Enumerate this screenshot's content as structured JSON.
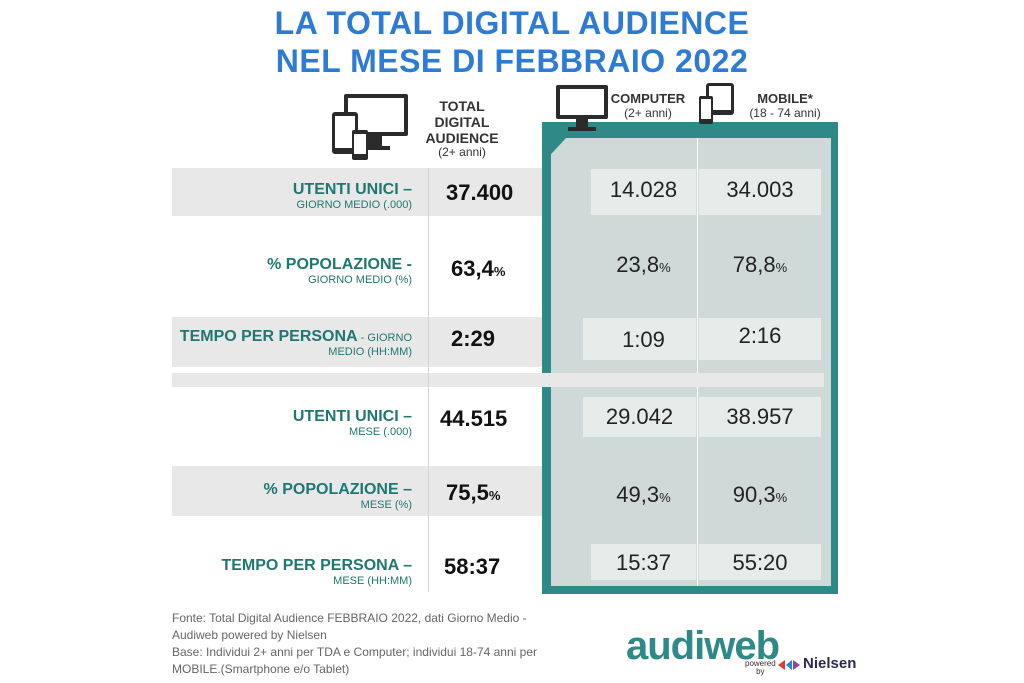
{
  "title": {
    "line1": "LA TOTAL DIGITAL AUDIENCE",
    "line2": "NEL MESE DI FEBBRAIO 2022"
  },
  "headers": {
    "tda": {
      "line1": "TOTAL DIGITAL",
      "line2": "AUDIENCE",
      "sub": "(2+ anni)"
    },
    "computer": {
      "label": "COMPUTER",
      "sub": "(2+ anni)"
    },
    "mobile": {
      "label": "MOBILE*",
      "sub": "(18 - 74 anni)"
    }
  },
  "rows": [
    {
      "main": "UTENTI UNICI –",
      "sub": "GIORNO MEDIO (.000)",
      "tda": "37.400",
      "tda_pct": "",
      "computer": "14.028",
      "computer_pct": "",
      "mobile": "34.003",
      "mobile_pct": ""
    },
    {
      "main": "% POPOLAZIONE -",
      "sub": "GIORNO MEDIO (%)",
      "tda": "63,4",
      "tda_pct": "%",
      "computer": "23,8",
      "computer_pct": "%",
      "mobile": "78,8",
      "mobile_pct": "%"
    },
    {
      "main": "TEMPO PER PERSONA",
      "main_tail": " - GIORNO",
      "sub": "MEDIO (HH:MM)",
      "tda": "2:29",
      "tda_pct": "",
      "computer": "1:09",
      "computer_pct": "",
      "mobile": "2:16",
      "mobile_pct": ""
    },
    {
      "main": "UTENTI UNICI –",
      "sub": "MESE (.000)",
      "tda": "44.515",
      "tda_pct": "",
      "computer": "29.042",
      "computer_pct": "",
      "mobile": "38.957",
      "mobile_pct": ""
    },
    {
      "main": "% POPOLAZIONE –",
      "sub": "MESE (%)",
      "tda": "75,5",
      "tda_pct": "%",
      "computer": "49,3",
      "computer_pct": "%",
      "mobile": "90,3",
      "mobile_pct": "%"
    },
    {
      "main": "TEMPO PER PERSONA –",
      "sub": "MESE (HH:MM)",
      "tda": "58:37",
      "tda_pct": "",
      "computer": "15:37",
      "computer_pct": "",
      "mobile": "55:20",
      "mobile_pct": ""
    }
  ],
  "footer": {
    "source_line1": "Fonte: Total Digital Audience FEBBRAIO 2022, dati Giorno Medio -",
    "source_line2": "Audiweb powered by Nielsen",
    "base_line1": "Base:  Individui 2+ anni per TDA e Computer; individui 18-74 anni per",
    "base_line2": "MOBILE.(Smartphone e/o Tablet)"
  },
  "logo": {
    "audiweb": "audiweb",
    "powered": "powered",
    "by": "by",
    "nielsen": "Nielsen"
  },
  "icons": [
    "devices-icon",
    "monitor-icon",
    "mobile-devices-icon"
  ],
  "colors": {
    "title": "#2e7bd6",
    "teal": "#2f8a87",
    "label": "#1f7772",
    "panel_inner": "#cfdad8",
    "row_stripe": "#e8e8e8"
  }
}
